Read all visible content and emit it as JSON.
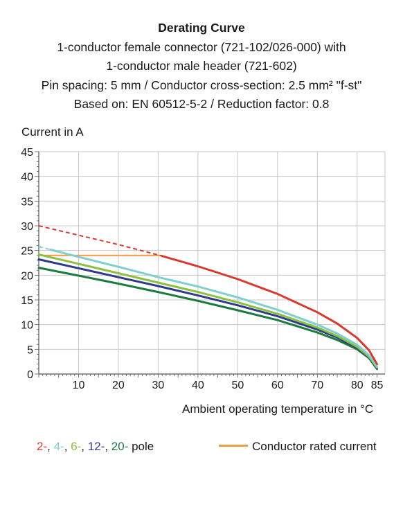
{
  "header": {
    "title": "Derating Curve",
    "line1": "1-conductor female connector (721-102/026-000) with",
    "line2": "1-conductor male header (721-602)",
    "line3": "Pin spacing: 5 mm / Conductor cross-section: 2.5 mm² \"f-st\"",
    "line4": "Based on: EN 60512-5-2 / Reduction factor: 0.8"
  },
  "axes": {
    "ylabel": "Current in A",
    "xlabel": "Ambient operating temperature in °C"
  },
  "legend": {
    "pole_items": [
      {
        "text": "2-",
        "color": "#d93a30"
      },
      {
        "text": ", ",
        "color": "#1a1a1a"
      },
      {
        "text": "4-",
        "color": "#7fcfd0"
      },
      {
        "text": ", ",
        "color": "#1a1a1a"
      },
      {
        "text": "6-",
        "color": "#8cc13f"
      },
      {
        "text": ", ",
        "color": "#1a1a1a"
      },
      {
        "text": "12-",
        "color": "#2e3a8a"
      },
      {
        "text": ", ",
        "color": "#1a1a1a"
      },
      {
        "text": "20-",
        "color": "#1b7a3e"
      },
      {
        "text": " pole",
        "color": "#1a1a1a"
      }
    ],
    "rated_label": "Conductor rated current",
    "rated_color": "#f39a45"
  },
  "chart_data": {
    "type": "line",
    "xlabel": "Ambient operating temperature in °C",
    "ylabel": "Current in A",
    "xlim": [
      0,
      87
    ],
    "ylim": [
      0,
      45
    ],
    "xticks": [
      10,
      20,
      30,
      40,
      50,
      60,
      70,
      80,
      85
    ],
    "yticks": [
      0,
      5,
      10,
      15,
      20,
      25,
      30,
      35,
      40,
      45
    ],
    "grid": true,
    "legend_position": "bottom",
    "rated_current": {
      "name": "Conductor rated current",
      "color": "#f39a45",
      "x": [
        0,
        31
      ],
      "y": [
        24,
        24
      ]
    },
    "series": [
      {
        "name": "2-",
        "color": "#d93a30",
        "dashed_until_x": 31,
        "x": [
          0,
          10,
          20,
          30,
          40,
          50,
          60,
          70,
          75,
          80,
          83,
          85
        ],
        "y": [
          30,
          28.1,
          26.2,
          24.1,
          21.8,
          19.2,
          16.2,
          12.5,
          10.2,
          7.3,
          4.8,
          2
        ]
      },
      {
        "name": "4-",
        "color": "#7fcfd0",
        "dashed_until_x": 3,
        "x": [
          0,
          10,
          20,
          30,
          40,
          50,
          60,
          70,
          75,
          80,
          83,
          85
        ],
        "y": [
          25.8,
          23.7,
          21.7,
          19.6,
          17.7,
          15.5,
          13,
          10,
          8.2,
          5.9,
          3.8,
          1.5
        ]
      },
      {
        "name": "6-",
        "color": "#8cc13f",
        "x": [
          0,
          10,
          20,
          30,
          40,
          50,
          60,
          70,
          75,
          80,
          83,
          85
        ],
        "y": [
          24.2,
          22.3,
          20.4,
          18.5,
          16.6,
          14.5,
          12.2,
          9.4,
          7.7,
          5.5,
          3.5,
          1.3
        ]
      },
      {
        "name": "12-",
        "color": "#2e3a8a",
        "x": [
          0,
          10,
          20,
          30,
          40,
          50,
          60,
          70,
          75,
          80,
          83,
          85
        ],
        "y": [
          23.2,
          21.4,
          19.6,
          17.8,
          15.9,
          13.9,
          11.7,
          9,
          7.4,
          5.3,
          3.4,
          1.2
        ]
      },
      {
        "name": "20-",
        "color": "#1b7a3e",
        "x": [
          0,
          10,
          20,
          30,
          40,
          50,
          60,
          70,
          75,
          80,
          83,
          85
        ],
        "y": [
          21.5,
          19.9,
          18.3,
          16.6,
          14.8,
          12.9,
          10.9,
          8.4,
          6.9,
          5,
          3.2,
          1
        ]
      }
    ]
  }
}
